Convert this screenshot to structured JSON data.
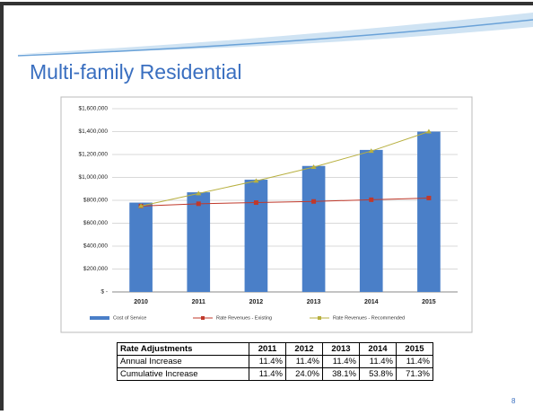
{
  "title": "Multi-family Residential",
  "page_number": "8",
  "chart_data": {
    "type": "bar",
    "categories": [
      "2010",
      "2011",
      "2012",
      "2013",
      "2014",
      "2015"
    ],
    "series": [
      {
        "name": "Cost of Service",
        "type": "bar",
        "color": "#4a7fc8",
        "values": [
          780000,
          870000,
          980000,
          1100000,
          1240000,
          1400000
        ]
      },
      {
        "name": "Rate Revenues - Existing",
        "type": "line",
        "color": "#c0392b",
        "values": [
          750000,
          770000,
          780000,
          790000,
          805000,
          820000
        ]
      },
      {
        "name": "Rate Revenues - Recommended",
        "type": "line",
        "color": "#b8b040",
        "values": [
          750000,
          860000,
          970000,
          1090000,
          1230000,
          1400000
        ]
      }
    ],
    "ylim": [
      0,
      1600000
    ],
    "yticks": [
      {
        "value": 0,
        "label": "$ -"
      },
      {
        "value": 200000,
        "label": "$200,000"
      },
      {
        "value": 400000,
        "label": "$400,000"
      },
      {
        "value": 600000,
        "label": "$600,000"
      },
      {
        "value": 800000,
        "label": "$800,000"
      },
      {
        "value": 1000000,
        "label": "$1,000,000"
      },
      {
        "value": 1200000,
        "label": "$1,200,000"
      },
      {
        "value": 1400000,
        "label": "$1,400,000"
      },
      {
        "value": 1600000,
        "label": "$1,600,000"
      }
    ],
    "grid": true,
    "legend": "bottom"
  },
  "table": {
    "header": [
      "Rate Adjustments",
      "2011",
      "2012",
      "2013",
      "2014",
      "2015"
    ],
    "rows": [
      [
        "Annual Increase",
        "11.4%",
        "11.4%",
        "11.4%",
        "11.4%",
        "11.4%"
      ],
      [
        "Cumulative Increase",
        "11.4%",
        "24.0%",
        "38.1%",
        "53.8%",
        "71.3%"
      ]
    ]
  }
}
